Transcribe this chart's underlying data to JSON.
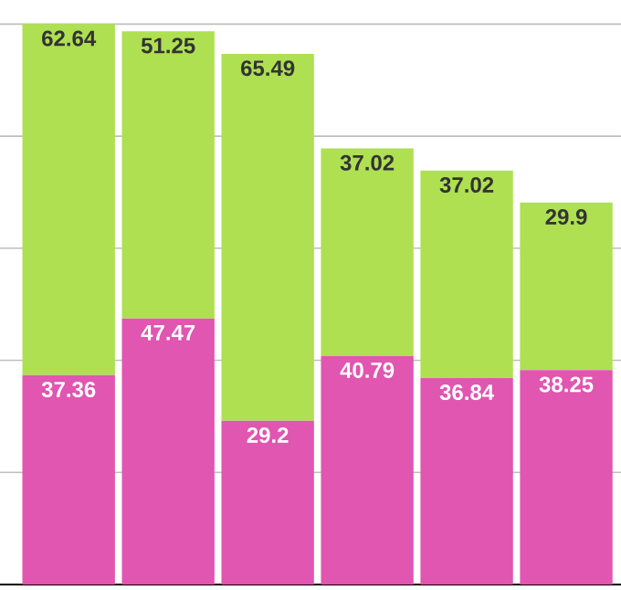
{
  "chart_data": {
    "type": "bar",
    "stacked": true,
    "categories": [
      null,
      null,
      null,
      null,
      null,
      null
    ],
    "series": [
      {
        "color": "#e056b0",
        "values": [
          37.36,
          47.47,
          29.2,
          40.79,
          36.84,
          38.25
        ]
      },
      {
        "color": "#aee052",
        "values": [
          62.64,
          51.25,
          65.49,
          37.02,
          37.02,
          29.9
        ]
      }
    ],
    "grid": "y",
    "data_labels": true
  }
}
